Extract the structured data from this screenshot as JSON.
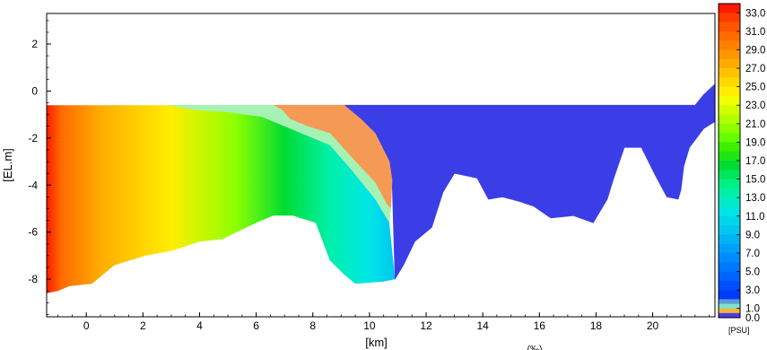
{
  "chart_data": {
    "type": "heatmap",
    "xlabel": "[km]",
    "ylabel": "[EL.m]",
    "xlim": [
      -1.4,
      22.2
    ],
    "ylim": [
      -9.6,
      3.3
    ],
    "x_ticks": [
      {
        "value": 0,
        "label": "0"
      },
      {
        "value": 2,
        "label": "2"
      },
      {
        "value": 4,
        "label": "4"
      },
      {
        "value": 6,
        "label": "6"
      },
      {
        "value": 8,
        "label": "8"
      },
      {
        "value": 10,
        "label": "10"
      },
      {
        "value": 12,
        "label": "12"
      },
      {
        "value": 14,
        "label": "14"
      },
      {
        "value": 16,
        "label": "16"
      },
      {
        "value": 18,
        "label": "18"
      },
      {
        "value": 20,
        "label": "20"
      }
    ],
    "y_ticks": [
      {
        "value": 2,
        "label": "2"
      },
      {
        "value": 0,
        "label": "0"
      },
      {
        "value": -2,
        "label": "-2"
      },
      {
        "value": -4,
        "label": "-4"
      },
      {
        "value": -6,
        "label": "-6"
      },
      {
        "value": -8,
        "label": "-8"
      }
    ],
    "colorbar": {
      "unit": "[PSU]",
      "unit_secondary": "(‰)",
      "min": 0.0,
      "max": 34.0,
      "labels": [
        "33.0",
        "31.0",
        "29.0",
        "27.0",
        "25.0",
        "23.0",
        "21.0",
        "19.0",
        "17.0",
        "15.0",
        "13.0",
        "11.0",
        "9.0",
        "7.0",
        "5.0",
        "3.0",
        "1.0",
        "0.0"
      ],
      "levels": [
        {
          "from": 33,
          "to": 34,
          "color": "#ff1a00"
        },
        {
          "from": 32,
          "to": 33,
          "color": "#ff3a00"
        },
        {
          "from": 31,
          "to": 32,
          "color": "#ff5500"
        },
        {
          "from": 30,
          "to": 31,
          "color": "#ff6a00"
        },
        {
          "from": 29,
          "to": 30,
          "color": "#ff8000"
        },
        {
          "from": 28,
          "to": 29,
          "color": "#ff9600"
        },
        {
          "from": 27,
          "to": 28,
          "color": "#ffac00"
        },
        {
          "from": 26,
          "to": 27,
          "color": "#ffc200"
        },
        {
          "from": 25,
          "to": 26,
          "color": "#ffd800"
        },
        {
          "from": 24,
          "to": 25,
          "color": "#ffee00"
        },
        {
          "from": 23,
          "to": 24,
          "color": "#f2ff00"
        },
        {
          "from": 22,
          "to": 23,
          "color": "#d2ff00"
        },
        {
          "from": 21,
          "to": 22,
          "color": "#b2ff00"
        },
        {
          "from": 20,
          "to": 21,
          "color": "#8cff00"
        },
        {
          "from": 19,
          "to": 20,
          "color": "#66ff00"
        },
        {
          "from": 18,
          "to": 19,
          "color": "#3cf000"
        },
        {
          "from": 17,
          "to": 18,
          "color": "#1ee614"
        },
        {
          "from": 16,
          "to": 17,
          "color": "#00dc32"
        },
        {
          "from": 15,
          "to": 16,
          "color": "#00e65a"
        },
        {
          "from": 14,
          "to": 15,
          "color": "#00f082"
        },
        {
          "from": 13,
          "to": 14,
          "color": "#00f0aa"
        },
        {
          "from": 12,
          "to": 13,
          "color": "#00ebc8"
        },
        {
          "from": 11,
          "to": 12,
          "color": "#00e6e6"
        },
        {
          "from": 10,
          "to": 11,
          "color": "#00d7eb"
        },
        {
          "from": 9,
          "to": 10,
          "color": "#00c8f0"
        },
        {
          "from": 8,
          "to": 9,
          "color": "#00b4f5"
        },
        {
          "from": 7,
          "to": 8,
          "color": "#00a0fa"
        },
        {
          "from": 6,
          "to": 7,
          "color": "#008cff"
        },
        {
          "from": 5,
          "to": 6,
          "color": "#0078ff"
        },
        {
          "from": 4,
          "to": 5,
          "color": "#0064ff"
        },
        {
          "from": 3,
          "to": 4,
          "color": "#0050ff"
        },
        {
          "from": 2,
          "to": 3,
          "color": "#003cff"
        },
        {
          "from": 1.5,
          "to": 2,
          "color": "#5a9bd5"
        },
        {
          "from": 1.0,
          "to": 1.5,
          "color": "#7fe0d0"
        },
        {
          "from": 0.5,
          "to": 1.0,
          "color": "#f2b53a"
        },
        {
          "from": 0.0,
          "to": 0.5,
          "color": "#4b3ae8"
        }
      ]
    },
    "regions": [
      {
        "name": "freshwater",
        "color": "#3b3ee6",
        "polygon": [
          [
            9.1,
            -0.6
          ],
          [
            21.5,
            -0.6
          ],
          [
            21.8,
            -0.15
          ],
          [
            22.2,
            0.3
          ],
          [
            22.2,
            -1.3
          ],
          [
            21.8,
            -1.6
          ],
          [
            21.3,
            -2.4
          ],
          [
            21.1,
            -3.2
          ],
          [
            21.0,
            -4.2
          ],
          [
            20.9,
            -4.6
          ],
          [
            20.5,
            -4.5
          ],
          [
            20.1,
            -3.6
          ],
          [
            19.6,
            -2.4
          ],
          [
            19.0,
            -2.4
          ],
          [
            18.6,
            -3.8
          ],
          [
            18.4,
            -4.6
          ],
          [
            17.9,
            -5.6
          ],
          [
            17.2,
            -5.3
          ],
          [
            16.4,
            -5.4
          ],
          [
            15.8,
            -4.9
          ],
          [
            15.3,
            -4.7
          ],
          [
            14.7,
            -4.5
          ],
          [
            14.2,
            -4.6
          ],
          [
            13.8,
            -3.7
          ],
          [
            13.0,
            -3.5
          ],
          [
            12.6,
            -4.3
          ],
          [
            12.2,
            -5.8
          ],
          [
            11.6,
            -6.4
          ],
          [
            11.2,
            -7.4
          ],
          [
            10.9,
            -8.0
          ],
          [
            10.8,
            -3.8
          ],
          [
            10.7,
            -3.0
          ],
          [
            10.2,
            -1.8
          ],
          [
            9.7,
            -1.2
          ]
        ]
      },
      {
        "name": "mixed-orange",
        "color": "#f59a55",
        "polygon": [
          [
            6.6,
            -0.6
          ],
          [
            9.1,
            -0.6
          ],
          [
            9.7,
            -1.2
          ],
          [
            10.2,
            -1.8
          ],
          [
            10.7,
            -3.0
          ],
          [
            10.8,
            -3.8
          ],
          [
            10.75,
            -5.0
          ],
          [
            10.6,
            -4.8
          ],
          [
            10.2,
            -3.9
          ],
          [
            9.5,
            -3.0
          ],
          [
            8.6,
            -1.8
          ],
          [
            7.8,
            -1.5
          ],
          [
            7.2,
            -1.2
          ],
          [
            6.9,
            -0.8
          ]
        ]
      },
      {
        "name": "mixed-mint",
        "color": "#a6f2b4",
        "polygon": [
          [
            2.9,
            -0.6
          ],
          [
            6.6,
            -0.6
          ],
          [
            6.9,
            -0.8
          ],
          [
            7.2,
            -1.2
          ],
          [
            7.8,
            -1.5
          ],
          [
            8.6,
            -1.8
          ],
          [
            9.5,
            -3.0
          ],
          [
            10.2,
            -3.9
          ],
          [
            10.6,
            -4.8
          ],
          [
            10.75,
            -5.0
          ],
          [
            10.7,
            -5.6
          ],
          [
            10.2,
            -4.6
          ],
          [
            9.4,
            -3.4
          ],
          [
            8.6,
            -2.3
          ],
          [
            7.6,
            -1.8
          ],
          [
            6.8,
            -1.4
          ],
          [
            6.2,
            -1.1
          ],
          [
            5.0,
            -0.9
          ],
          [
            3.8,
            -0.8
          ]
        ]
      },
      {
        "name": "saline",
        "gradient": [
          {
            "x": -1.4,
            "color": "#ff1a00"
          },
          {
            "x": -0.9,
            "color": "#ff6a00"
          },
          {
            "x": 0.5,
            "color": "#ffac00"
          },
          {
            "x": 3.0,
            "color": "#ffee00"
          },
          {
            "x": 5.3,
            "color": "#8cff00"
          },
          {
            "x": 7.0,
            "color": "#00dc32"
          },
          {
            "x": 8.6,
            "color": "#00f0aa"
          },
          {
            "x": 10.0,
            "color": "#00e6e6"
          },
          {
            "x": 10.8,
            "color": "#00c8f0"
          }
        ],
        "polygon": [
          [
            -1.4,
            -0.6
          ],
          [
            2.9,
            -0.6
          ],
          [
            3.8,
            -0.8
          ],
          [
            5.0,
            -0.9
          ],
          [
            6.2,
            -1.1
          ],
          [
            6.8,
            -1.4
          ],
          [
            7.6,
            -1.8
          ],
          [
            8.6,
            -2.3
          ],
          [
            9.4,
            -3.4
          ],
          [
            10.2,
            -4.6
          ],
          [
            10.7,
            -5.6
          ],
          [
            10.9,
            -8.0
          ],
          [
            10.5,
            -8.1
          ],
          [
            9.5,
            -8.2
          ],
          [
            9.1,
            -7.8
          ],
          [
            8.6,
            -7.2
          ],
          [
            8.1,
            -5.6
          ],
          [
            7.3,
            -5.3
          ],
          [
            6.6,
            -5.3
          ],
          [
            6.0,
            -5.6
          ],
          [
            4.8,
            -6.3
          ],
          [
            4.0,
            -6.4
          ],
          [
            3.0,
            -6.8
          ],
          [
            2.1,
            -7.0
          ],
          [
            1.0,
            -7.4
          ],
          [
            0.6,
            -7.8
          ],
          [
            0.2,
            -8.2
          ],
          [
            -0.6,
            -8.3
          ],
          [
            -1.0,
            -8.5
          ],
          [
            -1.4,
            -8.6
          ]
        ]
      }
    ]
  }
}
